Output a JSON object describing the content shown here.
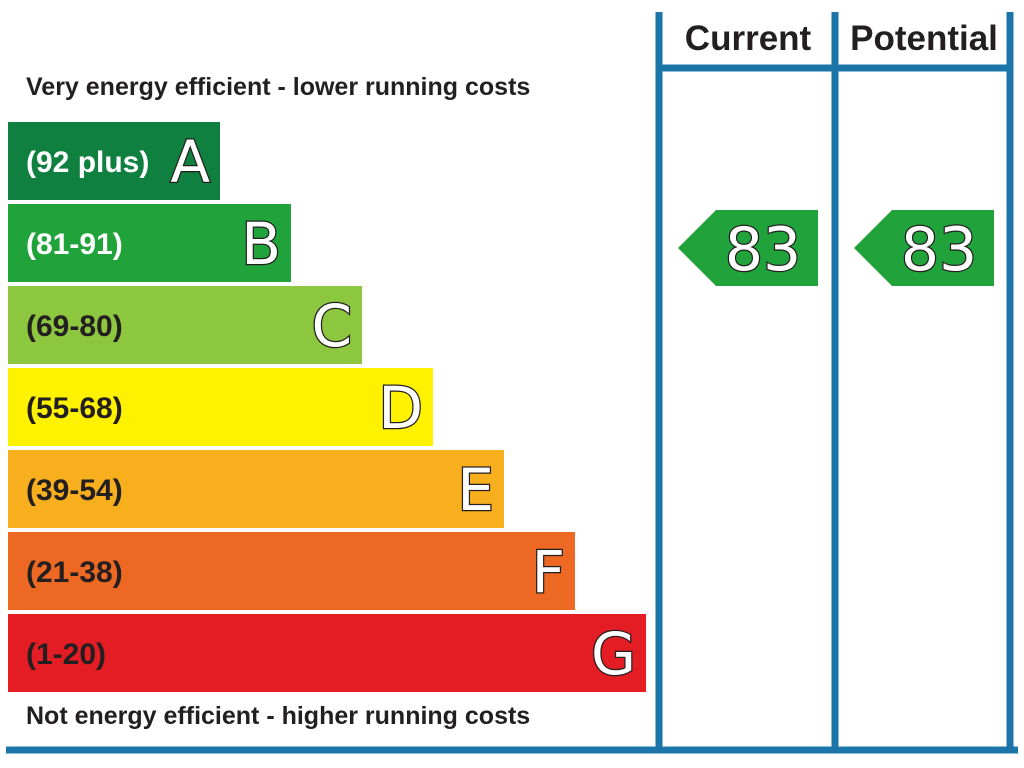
{
  "chart_data": {
    "type": "bar",
    "top_caption": "Very energy efficient - lower running costs",
    "bottom_caption": "Not energy efficient - higher running costs",
    "bands": [
      {
        "letter": "A",
        "range": "(92 plus)",
        "color": "#108040",
        "relative_length": 1,
        "light_text": true
      },
      {
        "letter": "B",
        "range": "(81-91)",
        "color": "#21a33b",
        "relative_length": 2,
        "light_text": true
      },
      {
        "letter": "C",
        "range": "(69-80)",
        "color": "#8dc63f",
        "relative_length": 3,
        "light_text": false
      },
      {
        "letter": "D",
        "range": "(55-68)",
        "color": "#fff200",
        "relative_length": 4,
        "light_text": false
      },
      {
        "letter": "E",
        "range": "(39-54)",
        "color": "#f7af1d",
        "relative_length": 5,
        "light_text": false
      },
      {
        "letter": "F",
        "range": "(21-38)",
        "color": "#ed6823",
        "relative_length": 6,
        "light_text": false
      },
      {
        "letter": "G",
        "range": "(1-20)",
        "color": "#e31d23",
        "relative_length": 7,
        "light_text": false
      }
    ],
    "columns": [
      {
        "header": "Current",
        "value": 83,
        "label": "83",
        "band": "B"
      },
      {
        "header": "Potential",
        "value": 83,
        "label": "83",
        "band": "B"
      }
    ],
    "frame_color": "#1b75a9",
    "arrow_color": "#21a33b"
  }
}
